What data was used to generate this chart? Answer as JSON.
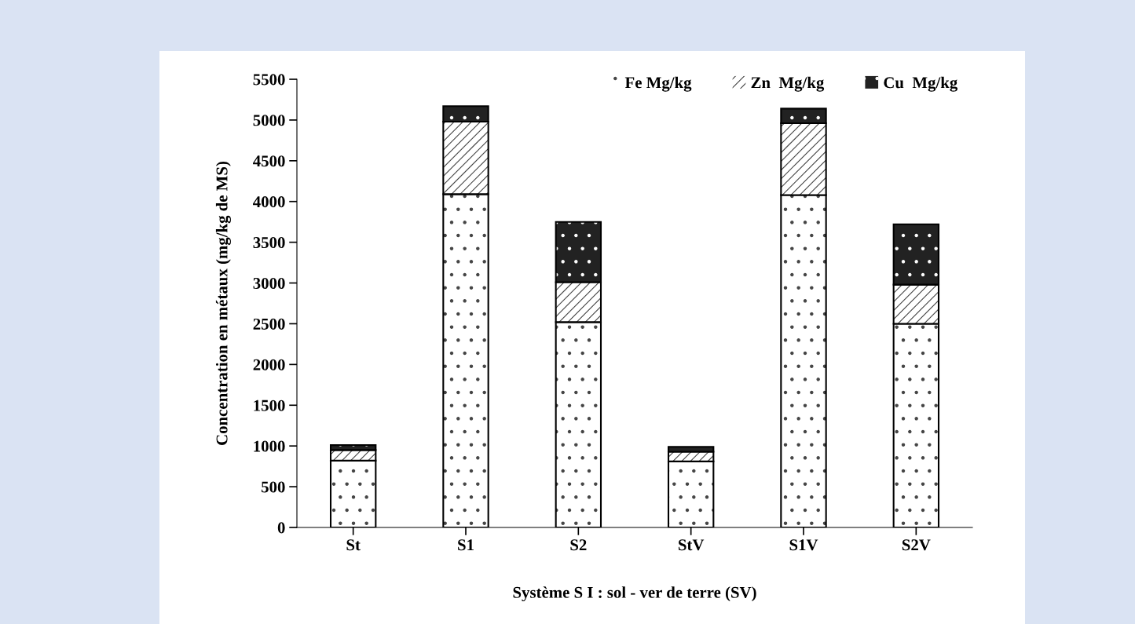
{
  "chart_data": {
    "type": "bar",
    "stacked": true,
    "xlabel": "Système S I : sol - ver de terre (SV)",
    "ylabel": "Concentration en métaux (mg/kg de MS)",
    "categories": [
      "St",
      "S1",
      "S2",
      "StV",
      "S1V",
      "S2V"
    ],
    "series": [
      {
        "name": "Fe Mg/kg",
        "color": "#ffffff",
        "values": [
          820,
          4090,
          2520,
          810,
          4080,
          2500
        ]
      },
      {
        "name": "Zn  Mg/kg",
        "color": "#ffffff",
        "values": [
          130,
          890,
          490,
          120,
          880,
          480
        ]
      },
      {
        "name": "Cu  Mg/kg",
        "color": "#222222",
        "values": [
          60,
          190,
          740,
          60,
          180,
          740
        ]
      }
    ],
    "ylim": [
      0,
      5500
    ],
    "yticks": [
      0,
      500,
      1000,
      1500,
      2000,
      2500,
      3000,
      3500,
      4000,
      4500,
      5000,
      5500
    ],
    "grid": false,
    "legend": "top right"
  }
}
